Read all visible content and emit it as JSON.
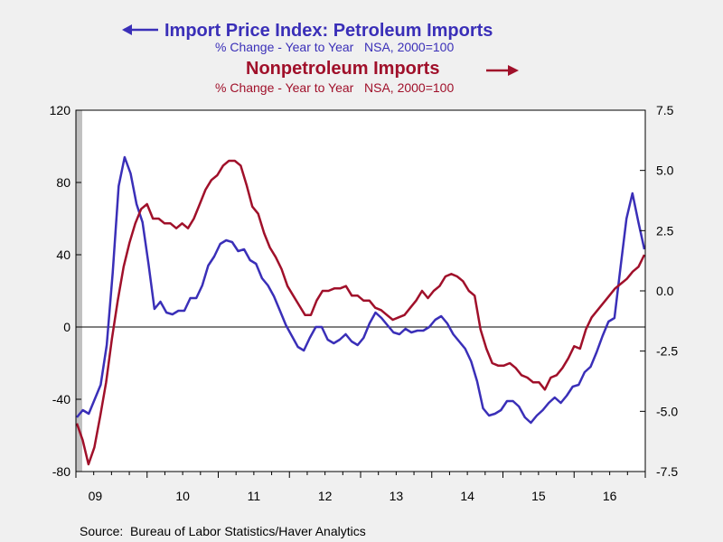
{
  "chart_data": {
    "type": "line",
    "titles": {
      "left_series_title": "Import Price Index: Petroleum Imports",
      "left_series_subtitle": "% Change - Year to Year   NSA, 2000=100",
      "right_series_title": "Nonpetroleum Imports",
      "right_series_subtitle": "% Change - Year to Year   NSA, 2000=100"
    },
    "source": "Source:  Bureau of Labor Statistics/Haver Analytics",
    "left_axis": {
      "ylim": [
        -80,
        120
      ],
      "ticks": [
        "120",
        "80",
        "40",
        "0",
        "-40",
        "-80"
      ]
    },
    "right_axis": {
      "ylim": [
        -7.5,
        7.5
      ],
      "ticks": [
        "7.5",
        "5.0",
        "2.5",
        "0.0",
        "-2.5",
        "-5.0",
        "-7.5"
      ]
    },
    "x_labels": [
      "09",
      "10",
      "11",
      "12",
      "13",
      "14",
      "15",
      "16"
    ],
    "x_start": "2009-01",
    "colors": {
      "petroleum": "#3a2fb8",
      "nonpetroleum": "#a0102a",
      "recession": "#c0c0c0",
      "background": "#ffffff"
    },
    "series": [
      {
        "name": "Import Price Index: Petroleum Imports",
        "axis": "left",
        "values": [
          -50,
          -46,
          -48,
          -40,
          -32,
          -10,
          30,
          78,
          94,
          85,
          68,
          58,
          35,
          10,
          14,
          8,
          7,
          9,
          9,
          16,
          16,
          23,
          34,
          39,
          46,
          48,
          47,
          42,
          43,
          37,
          35,
          27,
          23,
          17,
          9,
          1,
          -5,
          -11,
          -13,
          -6,
          0,
          0,
          -7,
          -9,
          -7,
          -4,
          -8,
          -10,
          -6,
          2,
          8,
          5,
          1,
          -3,
          -4,
          -1,
          -3,
          -2,
          -2,
          0,
          4,
          6,
          2,
          -4,
          -8,
          -12,
          -19,
          -30,
          -45,
          -49,
          -48,
          -46,
          -41,
          -41,
          -44,
          -50,
          -53,
          -49,
          -46,
          -42,
          -39,
          -42,
          -38,
          -33,
          -32,
          -25,
          -22,
          -14,
          -5,
          3,
          5,
          33,
          60,
          74,
          58,
          43
        ]
      },
      {
        "name": "Nonpetroleum Imports",
        "axis": "right",
        "values": [
          -5.5,
          -6.2,
          -7.2,
          -6.5,
          -5.2,
          -3.8,
          -2.0,
          -0.4,
          1.0,
          2.0,
          2.8,
          3.4,
          3.6,
          3.0,
          3.0,
          2.8,
          2.8,
          2.6,
          2.8,
          2.6,
          3.0,
          3.6,
          4.2,
          4.6,
          4.8,
          5.2,
          5.4,
          5.4,
          5.2,
          4.4,
          3.5,
          3.2,
          2.4,
          1.8,
          1.4,
          0.9,
          0.2,
          -0.2,
          -0.6,
          -1.0,
          -1.0,
          -0.4,
          0.0,
          0.0,
          0.1,
          0.1,
          0.2,
          -0.2,
          -0.2,
          -0.4,
          -0.4,
          -0.7,
          -0.8,
          -1.0,
          -1.2,
          -1.1,
          -1.0,
          -0.7,
          -0.4,
          0.0,
          -0.3,
          0.0,
          0.2,
          0.6,
          0.7,
          0.6,
          0.4,
          0.0,
          -0.2,
          -1.6,
          -2.4,
          -3.0,
          -3.1,
          -3.1,
          -3.0,
          -3.2,
          -3.5,
          -3.6,
          -3.8,
          -3.8,
          -4.1,
          -3.6,
          -3.5,
          -3.2,
          -2.8,
          -2.3,
          -2.4,
          -1.6,
          -1.1,
          -0.8,
          -0.5,
          -0.2,
          0.1,
          0.3,
          0.5,
          0.8,
          1.0,
          1.5
        ]
      }
    ],
    "zero_line": true,
    "recession_shade": [
      "2009-01",
      "2009-06"
    ]
  }
}
